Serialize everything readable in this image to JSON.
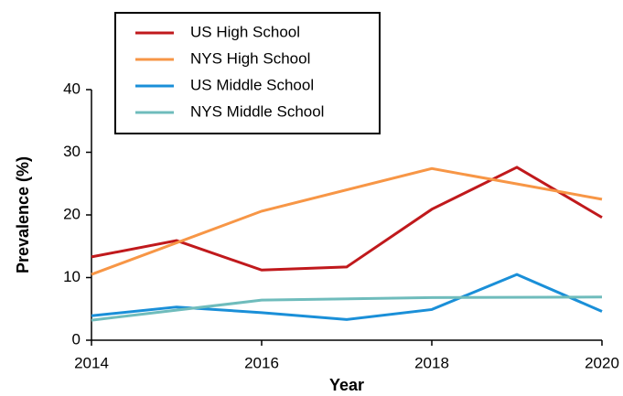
{
  "chart_data": {
    "type": "line",
    "x_label": "Year",
    "y_label": "Prevalence (%)",
    "xlim": [
      2014,
      2020
    ],
    "xticks": [
      2014,
      2016,
      2018,
      2020
    ],
    "ylim": [
      0,
      40
    ],
    "yticks": [
      0,
      10,
      20,
      30,
      40
    ],
    "grid": false,
    "legend": "top",
    "series": [
      {
        "name": "US High School",
        "color": "#c0191c",
        "x": [
          2014,
          2015,
          2016,
          2017,
          2018,
          2019,
          2020
        ],
        "values": [
          13.3,
          15.9,
          11.2,
          11.7,
          20.9,
          27.6,
          19.6
        ]
      },
      {
        "name": "NYS High School",
        "color": "#f79646",
        "x": [
          2014,
          2016,
          2018,
          2020
        ],
        "values": [
          10.5,
          20.6,
          27.4,
          22.5
        ]
      },
      {
        "name": "US Middle School",
        "color": "#1a8fd8",
        "x": [
          2014,
          2015,
          2016,
          2017,
          2018,
          2019,
          2020
        ],
        "values": [
          3.9,
          5.3,
          4.4,
          3.3,
          4.9,
          10.5,
          4.6
        ]
      },
      {
        "name": "NYS Middle School",
        "color": "#6fbcbc",
        "x": [
          2014,
          2016,
          2018,
          2020
        ],
        "values": [
          3.2,
          6.4,
          6.8,
          6.9
        ]
      }
    ]
  }
}
